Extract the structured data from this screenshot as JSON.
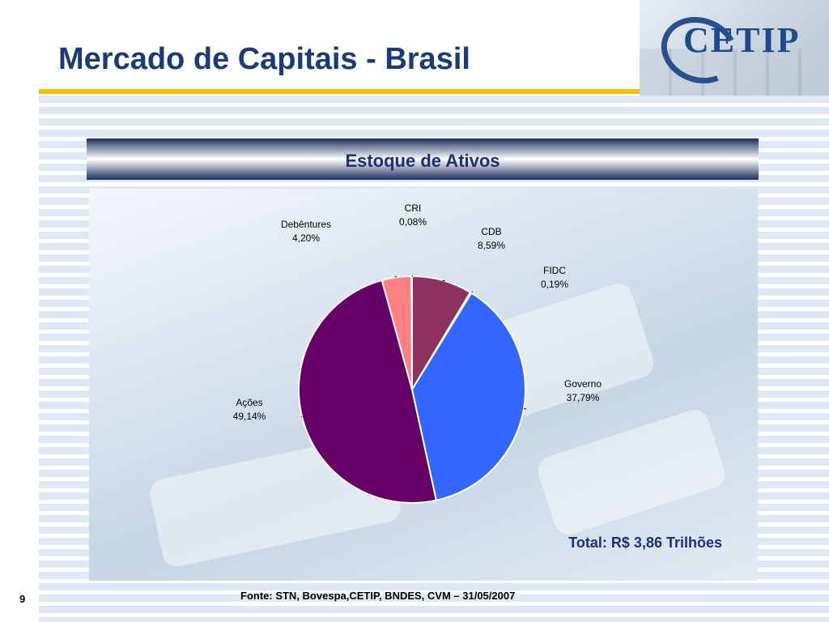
{
  "header": {
    "title": "Mercado de Capitais - Brasil",
    "logo_text": "CETIP"
  },
  "banner": {
    "label": "Estoque de Ativos"
  },
  "chart_data": {
    "type": "pie",
    "categories": [
      "CDB",
      "FIDC",
      "Governo",
      "Ações",
      "Debêntures",
      "CRI"
    ],
    "values": [
      8.59,
      0.19,
      37.79,
      49.14,
      4.2,
      0.08
    ],
    "value_labels": [
      "8,59%",
      "0,19%",
      "37,79%",
      "49,14%",
      "4,20%",
      "0,08%"
    ],
    "colors": [
      "#8e3060",
      "#ffffcc",
      "#3366ff",
      "#660066",
      "#ff8080",
      "#0066cc"
    ],
    "start_angle_deg": 0,
    "direction": "clockwise"
  },
  "total": "Total: R$ 3,86 Trilhões",
  "footer": {
    "source": "Fonte: STN, Bovespa,CETIP, BNDES, CVM – 31/05/2007",
    "page": "9"
  }
}
